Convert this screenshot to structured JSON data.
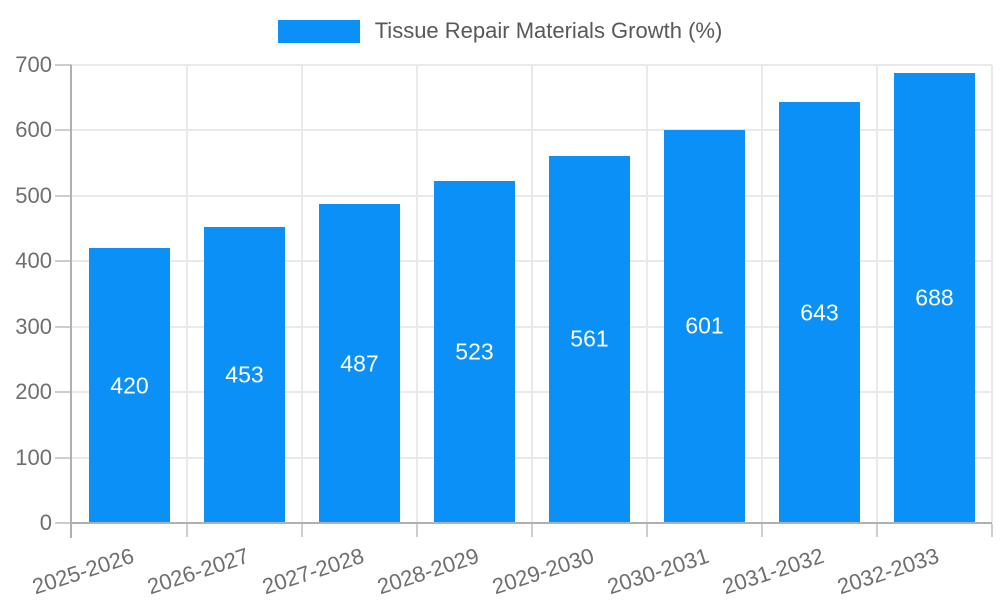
{
  "legend": {
    "label": "Tissue Repair Materials Growth (%)"
  },
  "chart_data": {
    "type": "bar",
    "title": "Tissue Repair Materials Growth (%)",
    "categories": [
      "2025-2026",
      "2026-2027",
      "2027-2028",
      "2028-2029",
      "2029-2030",
      "2030-2031",
      "2031-2032",
      "2032-2033"
    ],
    "values": [
      420,
      453,
      487,
      523,
      561,
      601,
      643,
      688
    ],
    "xlabel": "",
    "ylabel": "",
    "ylim": [
      0,
      700
    ],
    "yticks": [
      0,
      100,
      200,
      300,
      400,
      500,
      600,
      700
    ],
    "grid": true,
    "legend_position": "top-center",
    "x_tick_rotation_deg": -18,
    "bar_labels_inside": true,
    "colors": {
      "bar": "#0a90f7",
      "bar_label": "#ffffff",
      "axis_text": "#6e6e6e",
      "legend_text": "#58585a",
      "gridline": "#e9e9e9",
      "axis_line": "#b0b0b0",
      "tick": "#cdcdcd",
      "background": "#ffffff"
    }
  }
}
